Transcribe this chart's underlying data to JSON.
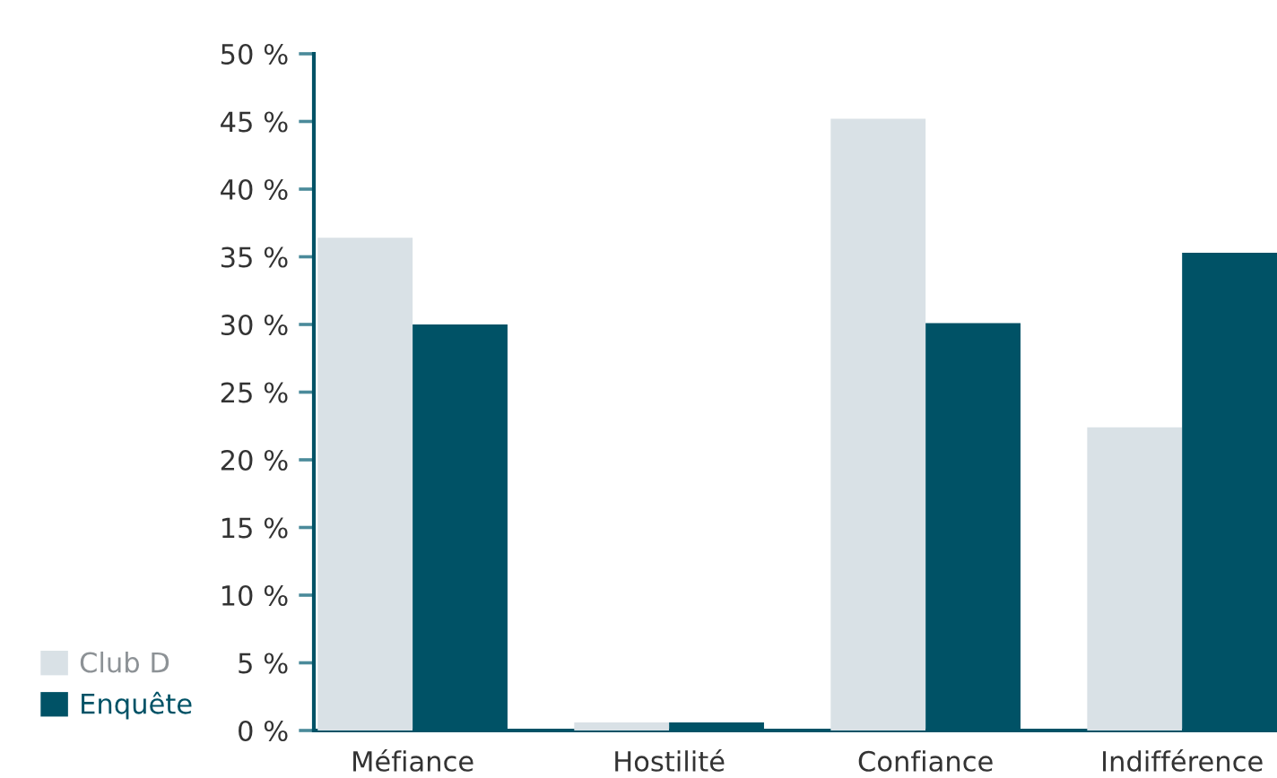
{
  "chart_data": {
    "type": "bar",
    "categories": [
      "Méfiance",
      "Hostilité",
      "Confiance",
      "Indifférence"
    ],
    "series": [
      {
        "name": "Club D",
        "color": "#d9e1e6",
        "values": [
          36.4,
          0.6,
          45.2,
          22.4
        ]
      },
      {
        "name": "Enquête",
        "color": "#005266",
        "values": [
          30.0,
          0.6,
          30.1,
          35.3
        ]
      }
    ],
    "ylim": [
      0,
      50
    ],
    "yticks": [
      {
        "value": 0,
        "label": "0 %"
      },
      {
        "value": 5,
        "label": "5 %"
      },
      {
        "value": 10,
        "label": "10 %"
      },
      {
        "value": 15,
        "label": "15 %"
      },
      {
        "value": 20,
        "label": "20 %"
      },
      {
        "value": 25,
        "label": "25 %"
      },
      {
        "value": 30,
        "label": "30 %"
      },
      {
        "value": 35,
        "label": "35 %"
      },
      {
        "value": 40,
        "label": "40 %"
      },
      {
        "value": 45,
        "label": "45 %"
      },
      {
        "value": 50,
        "label": "50 %"
      }
    ],
    "legend": "bottom left"
  }
}
